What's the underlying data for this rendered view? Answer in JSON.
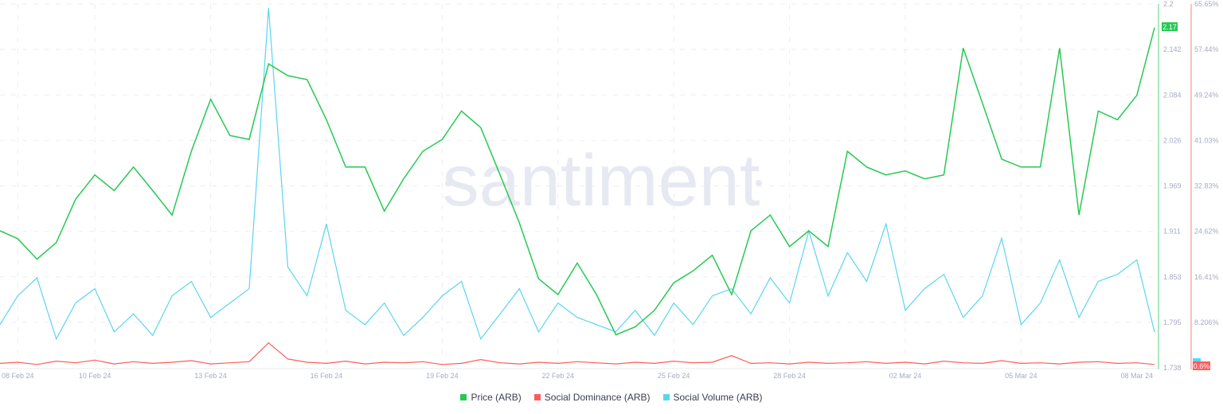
{
  "chart_data": {
    "type": "line",
    "watermark": "santiment",
    "x_ticks": [
      "08 Feb 24",
      "10 Feb 24",
      "13 Feb 24",
      "16 Feb 24",
      "19 Feb 24",
      "22 Feb 24",
      "25 Feb 24",
      "28 Feb 24",
      "02 Mar 24",
      "05 Mar 24",
      "08 Mar 24"
    ],
    "x_tick_dates": [
      "2024-02-08",
      "2024-02-10",
      "2024-02-13",
      "2024-02-16",
      "2024-02-19",
      "2024-02-22",
      "2024-02-25",
      "2024-02-28",
      "2024-03-02",
      "2024-03-05",
      "2024-03-08"
    ],
    "x_range": [
      "2024-02-07T13:00",
      "2024-03-08T12:00"
    ],
    "grid": true,
    "legend_position": "bottom",
    "price_axis": {
      "ticks": [
        "2.2",
        "2.142",
        "2.084",
        "2.026",
        "1.969",
        "1.911",
        "1.853",
        "1.795",
        "1.738"
      ],
      "ylim": [
        1.738,
        2.2
      ],
      "current_label": "2.17",
      "color": "#26c953"
    },
    "dominance_axis": {
      "ticks": [
        "65.65%",
        "57.44%",
        "49.24%",
        "41.03%",
        "32.83%",
        "24.62%",
        "16.41%",
        "8.206%"
      ],
      "ylim": [
        0,
        65.65
      ],
      "current_label": "0.6%",
      "color": "#ff5b5b"
    },
    "x": [
      "2024-02-07T13:00",
      "2024-02-08T00:00",
      "2024-02-08T12:00",
      "2024-02-09T00:00",
      "2024-02-09T12:00",
      "2024-02-10T00:00",
      "2024-02-10T12:00",
      "2024-02-11T00:00",
      "2024-02-11T12:00",
      "2024-02-12T00:00",
      "2024-02-12T12:00",
      "2024-02-13T00:00",
      "2024-02-13T12:00",
      "2024-02-14T00:00",
      "2024-02-14T12:00",
      "2024-02-15T00:00",
      "2024-02-15T12:00",
      "2024-02-16T00:00",
      "2024-02-16T12:00",
      "2024-02-17T00:00",
      "2024-02-17T12:00",
      "2024-02-18T00:00",
      "2024-02-18T12:00",
      "2024-02-19T00:00",
      "2024-02-19T12:00",
      "2024-02-20T00:00",
      "2024-02-20T12:00",
      "2024-02-21T00:00",
      "2024-02-21T12:00",
      "2024-02-22T00:00",
      "2024-02-22T12:00",
      "2024-02-23T00:00",
      "2024-02-23T12:00",
      "2024-02-24T00:00",
      "2024-02-24T12:00",
      "2024-02-25T00:00",
      "2024-02-25T12:00",
      "2024-02-26T00:00",
      "2024-02-26T12:00",
      "2024-02-27T00:00",
      "2024-02-27T12:00",
      "2024-02-28T00:00",
      "2024-02-28T12:00",
      "2024-02-29T00:00",
      "2024-02-29T12:00",
      "2024-03-01T00:00",
      "2024-03-01T12:00",
      "2024-03-02T00:00",
      "2024-03-02T12:00",
      "2024-03-03T00:00",
      "2024-03-03T12:00",
      "2024-03-04T00:00",
      "2024-03-04T12:00",
      "2024-03-05T00:00",
      "2024-03-05T12:00",
      "2024-03-06T00:00",
      "2024-03-06T12:00",
      "2024-03-07T00:00",
      "2024-03-07T12:00",
      "2024-03-08T00:00",
      "2024-03-08T11:00"
    ],
    "series": [
      {
        "name": "Price (ARB)",
        "color": "#26c953",
        "axis": "price",
        "values": [
          1.912,
          1.902,
          1.876,
          1.897,
          1.952,
          1.983,
          1.963,
          1.993,
          1.963,
          1.932,
          2.013,
          2.079,
          2.033,
          2.028,
          2.124,
          2.109,
          2.104,
          2.053,
          1.993,
          1.993,
          1.937,
          1.978,
          2.013,
          2.028,
          2.064,
          2.043,
          1.983,
          1.922,
          1.851,
          1.831,
          1.871,
          1.831,
          1.78,
          1.79,
          1.811,
          1.846,
          1.861,
          1.881,
          1.831,
          1.912,
          1.932,
          1.892,
          1.912,
          1.892,
          2.013,
          1.993,
          1.983,
          1.988,
          1.978,
          1.983,
          2.144,
          2.074,
          2.003,
          1.993,
          1.993,
          2.144,
          1.932,
          2.064,
          2.053,
          2.084,
          2.17
        ]
      },
      {
        "name": "Social Dominance (ARB)",
        "color": "#ff5b5b",
        "axis": "dominance",
        "values": [
          0.8,
          1.0,
          0.6,
          1.2,
          0.9,
          1.4,
          0.7,
          1.1,
          0.8,
          1.0,
          1.3,
          0.7,
          0.9,
          1.1,
          4.5,
          1.6,
          1.0,
          0.8,
          1.2,
          0.7,
          1.0,
          0.9,
          1.1,
          0.6,
          0.8,
          1.5,
          0.9,
          0.7,
          1.0,
          0.8,
          1.1,
          0.9,
          0.7,
          1.0,
          0.8,
          1.2,
          0.9,
          1.0,
          2.2,
          0.8,
          0.9,
          0.7,
          1.0,
          0.8,
          0.9,
          1.1,
          0.8,
          1.0,
          0.7,
          1.2,
          0.9,
          0.8,
          1.3,
          0.8,
          0.9,
          0.7,
          1.0,
          1.1,
          0.8,
          0.9,
          0.6
        ]
      },
      {
        "name": "Social Volume (ARB)",
        "color": "#5ad5f0",
        "axis": "hidden",
        "values": [
          12,
          20,
          25,
          8,
          18,
          22,
          10,
          15,
          9,
          20,
          24,
          14,
          18,
          22,
          100,
          28,
          20,
          40,
          16,
          12,
          18,
          9,
          14,
          20,
          24,
          8,
          15,
          22,
          10,
          18,
          14,
          12,
          10,
          16,
          9,
          18,
          12,
          20,
          22,
          15,
          25,
          18,
          38,
          20,
          32,
          24,
          40,
          16,
          22,
          26,
          14,
          20,
          36,
          12,
          18,
          30,
          14,
          24,
          26,
          30,
          10
        ]
      }
    ]
  }
}
